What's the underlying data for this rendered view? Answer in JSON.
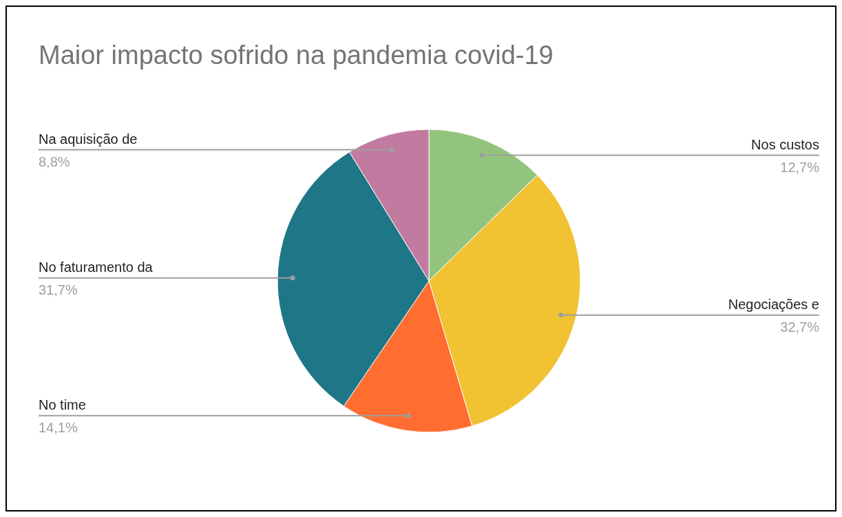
{
  "chart_data": {
    "type": "pie",
    "title": "Maior impacto sofrido na pandemia covid-19",
    "categories": [
      "Nos custos",
      "Negociações e",
      "No time",
      "No faturamento da",
      "Na aquisição de"
    ],
    "values": [
      12.7,
      32.7,
      14.1,
      31.7,
      8.8
    ],
    "colors": [
      "#93c47d",
      "#f1c232",
      "#ff6d31",
      "#1f7686",
      "#c27ba0"
    ],
    "value_labels": [
      "12,7%",
      "32,7%",
      "14,1%",
      "31,7%",
      "8,8%"
    ]
  }
}
